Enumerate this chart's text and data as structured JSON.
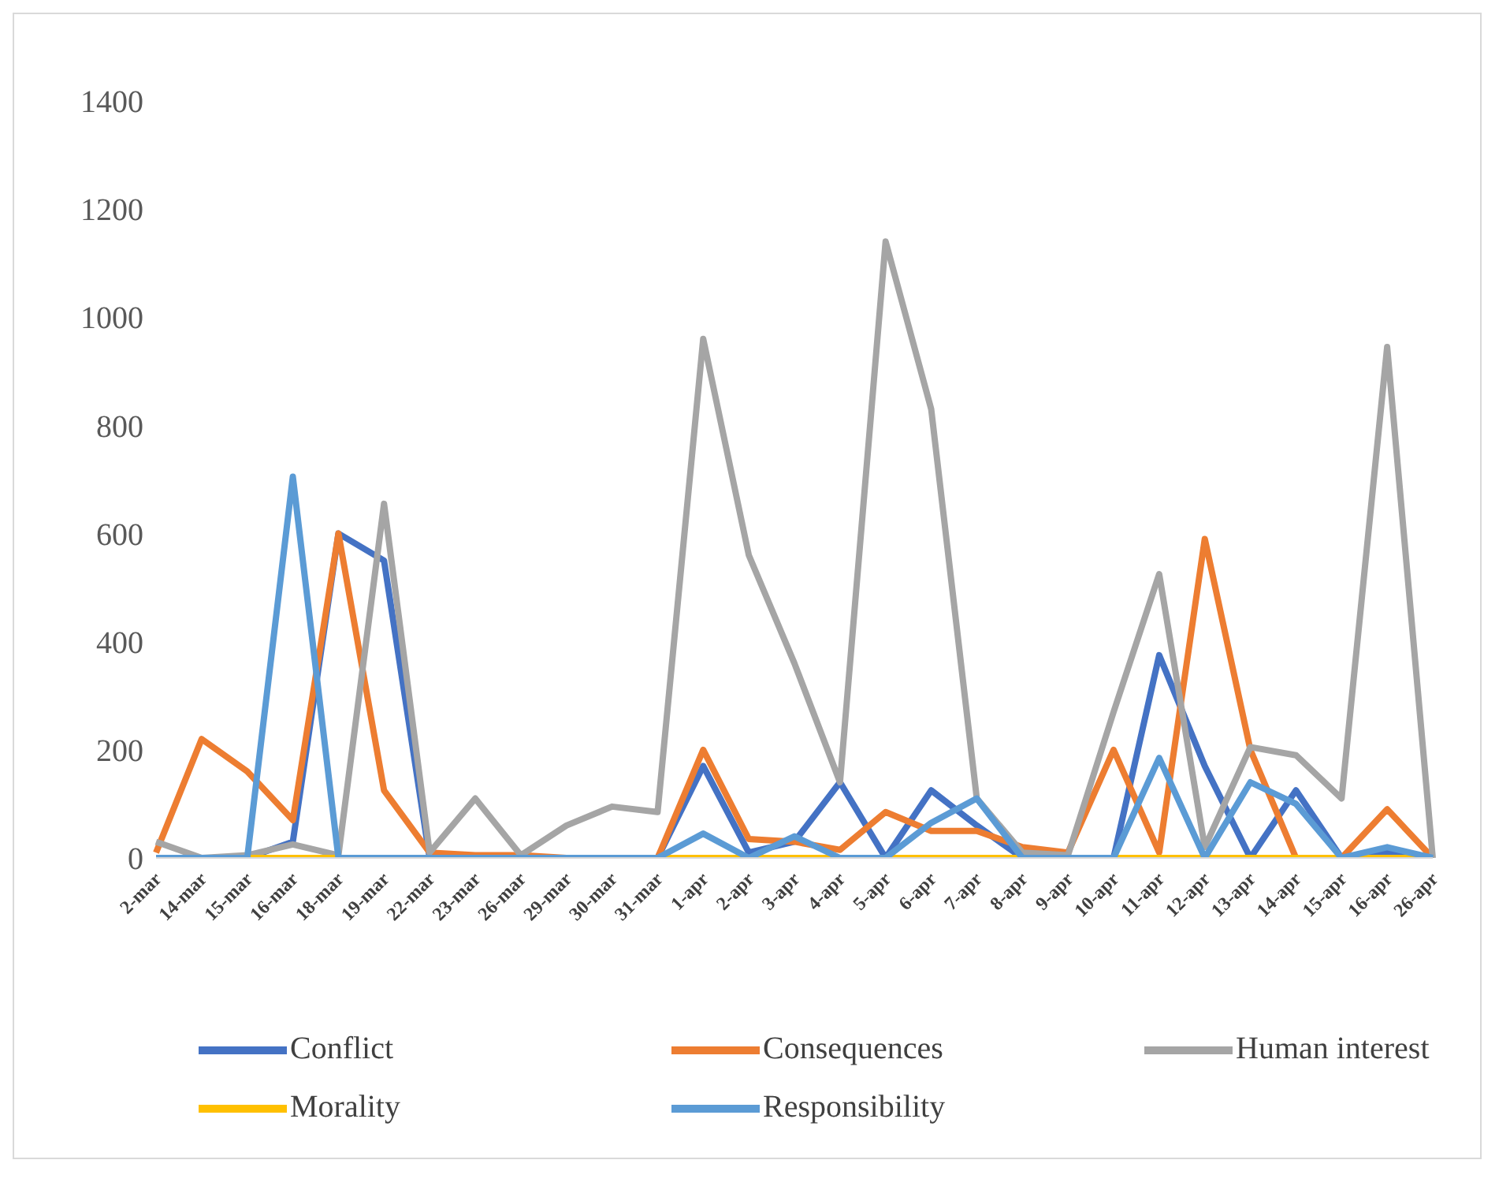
{
  "chart_data": {
    "type": "line",
    "categories": [
      "2-mar",
      "14-mar",
      "15-mar",
      "16-mar",
      "18-mar",
      "19-mar",
      "22-mar",
      "23-mar",
      "26-mar",
      "29-mar",
      "30-mar",
      "31-mar",
      "1-apr",
      "2-apr",
      "3-apr",
      "4-apr",
      "5-apr",
      "6-apr",
      "7-apr",
      "8-apr",
      "9-apr",
      "10-apr",
      "11-apr",
      "12-apr",
      "13-apr",
      "14-apr",
      "15-apr",
      "16-apr",
      "26-apr"
    ],
    "series": [
      {
        "name": "Conflict",
        "color": "#4472c4",
        "values": [
          0,
          0,
          0,
          30,
          600,
          550,
          0,
          0,
          0,
          0,
          0,
          0,
          170,
          10,
          30,
          140,
          0,
          125,
          60,
          0,
          0,
          0,
          375,
          170,
          0,
          125,
          0,
          10,
          0
        ]
      },
      {
        "name": "Consequences",
        "color": "#ed7d31",
        "values": [
          10,
          220,
          160,
          70,
          600,
          125,
          10,
          5,
          5,
          0,
          0,
          0,
          200,
          35,
          30,
          15,
          85,
          50,
          50,
          20,
          10,
          200,
          10,
          590,
          200,
          0,
          0,
          90,
          0
        ]
      },
      {
        "name": "Human interest",
        "color": "#a5a5a5",
        "values": [
          30,
          0,
          5,
          25,
          5,
          655,
          10,
          110,
          5,
          60,
          95,
          85,
          960,
          560,
          360,
          140,
          1140,
          830,
          110,
          10,
          5,
          270,
          525,
          20,
          205,
          190,
          110,
          945,
          0
        ]
      },
      {
        "name": "Morality",
        "color": "#ffc000",
        "values": [
          0,
          0,
          0,
          0,
          0,
          0,
          0,
          0,
          0,
          0,
          0,
          0,
          0,
          0,
          0,
          0,
          0,
          0,
          0,
          0,
          0,
          0,
          0,
          0,
          0,
          0,
          0,
          0,
          0
        ]
      },
      {
        "name": "Responsibility",
        "color": "#5b9bd5",
        "values": [
          0,
          0,
          0,
          705,
          0,
          0,
          0,
          0,
          0,
          0,
          0,
          0,
          45,
          0,
          40,
          0,
          0,
          65,
          110,
          0,
          0,
          0,
          185,
          0,
          140,
          100,
          0,
          20,
          0
        ]
      }
    ],
    "ylim": [
      0,
      1400
    ],
    "yticks": [
      0,
      200,
      400,
      600,
      800,
      1000,
      1200,
      1400
    ],
    "grid": false,
    "legend": "bottom",
    "marker": "none",
    "line_style": "solid"
  }
}
